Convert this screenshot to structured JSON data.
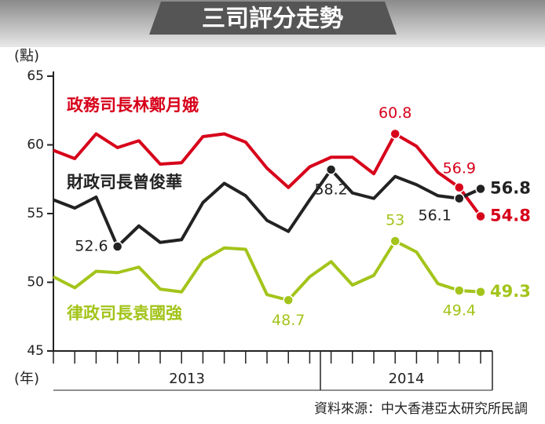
{
  "chart_data": {
    "type": "line",
    "title": "三司評分走勢",
    "y_label": "(點)",
    "x_label": "(年)",
    "source": "資料來源：中大香港亞太研究所民調",
    "categories": [
      null,
      null,
      null,
      null,
      null,
      null,
      null,
      null,
      null,
      null,
      null,
      null,
      null,
      null,
      null,
      null,
      null,
      null,
      null,
      null,
      null
    ],
    "x_groups": [
      {
        "label": "2013",
        "first": 0,
        "last": 12
      },
      {
        "label": "2014",
        "first": 13,
        "last": 20
      }
    ],
    "ylim": [
      45,
      65
    ],
    "yticks": [
      45,
      50,
      55,
      60,
      65
    ],
    "grid": false,
    "series": [
      {
        "name": "政務司長林鄭月娥",
        "color": "#d7001a",
        "values": [
          59.6,
          59.0,
          60.8,
          59.8,
          60.3,
          58.6,
          58.7,
          60.6,
          60.8,
          60.2,
          58.3,
          56.9,
          58.4,
          59.1,
          59.1,
          57.9,
          60.8,
          59.9,
          58.0,
          56.9,
          54.8
        ],
        "value_labels": [
          null,
          null,
          null,
          null,
          null,
          null,
          null,
          null,
          null,
          null,
          null,
          null,
          null,
          null,
          null,
          null,
          "60.8",
          null,
          null,
          "56.9",
          "54.8"
        ]
      },
      {
        "name": "財政司長曾俊華",
        "color": "#222222",
        "values": [
          56.0,
          55.4,
          56.2,
          52.6,
          54.1,
          52.9,
          53.1,
          55.8,
          57.2,
          56.3,
          54.5,
          53.7,
          56.0,
          58.2,
          56.5,
          56.1,
          57.7,
          57.1,
          56.3,
          56.1,
          56.8
        ],
        "value_labels": [
          null,
          null,
          null,
          "52.6",
          null,
          null,
          null,
          null,
          null,
          null,
          null,
          null,
          null,
          "58.2",
          null,
          null,
          null,
          null,
          null,
          "56.1",
          "56.8"
        ]
      },
      {
        "name": "律政司長袁國強",
        "color": "#a3c41a",
        "values": [
          50.4,
          49.6,
          50.8,
          50.7,
          51.1,
          49.5,
          49.3,
          51.6,
          52.5,
          52.4,
          49.1,
          48.7,
          50.4,
          51.5,
          49.8,
          50.5,
          53.0,
          52.2,
          49.9,
          49.4,
          49.3
        ],
        "value_labels": [
          null,
          null,
          null,
          null,
          null,
          null,
          null,
          null,
          null,
          null,
          null,
          "48.7",
          null,
          null,
          null,
          null,
          "53",
          null,
          null,
          "49.4",
          "49.3"
        ]
      }
    ]
  }
}
